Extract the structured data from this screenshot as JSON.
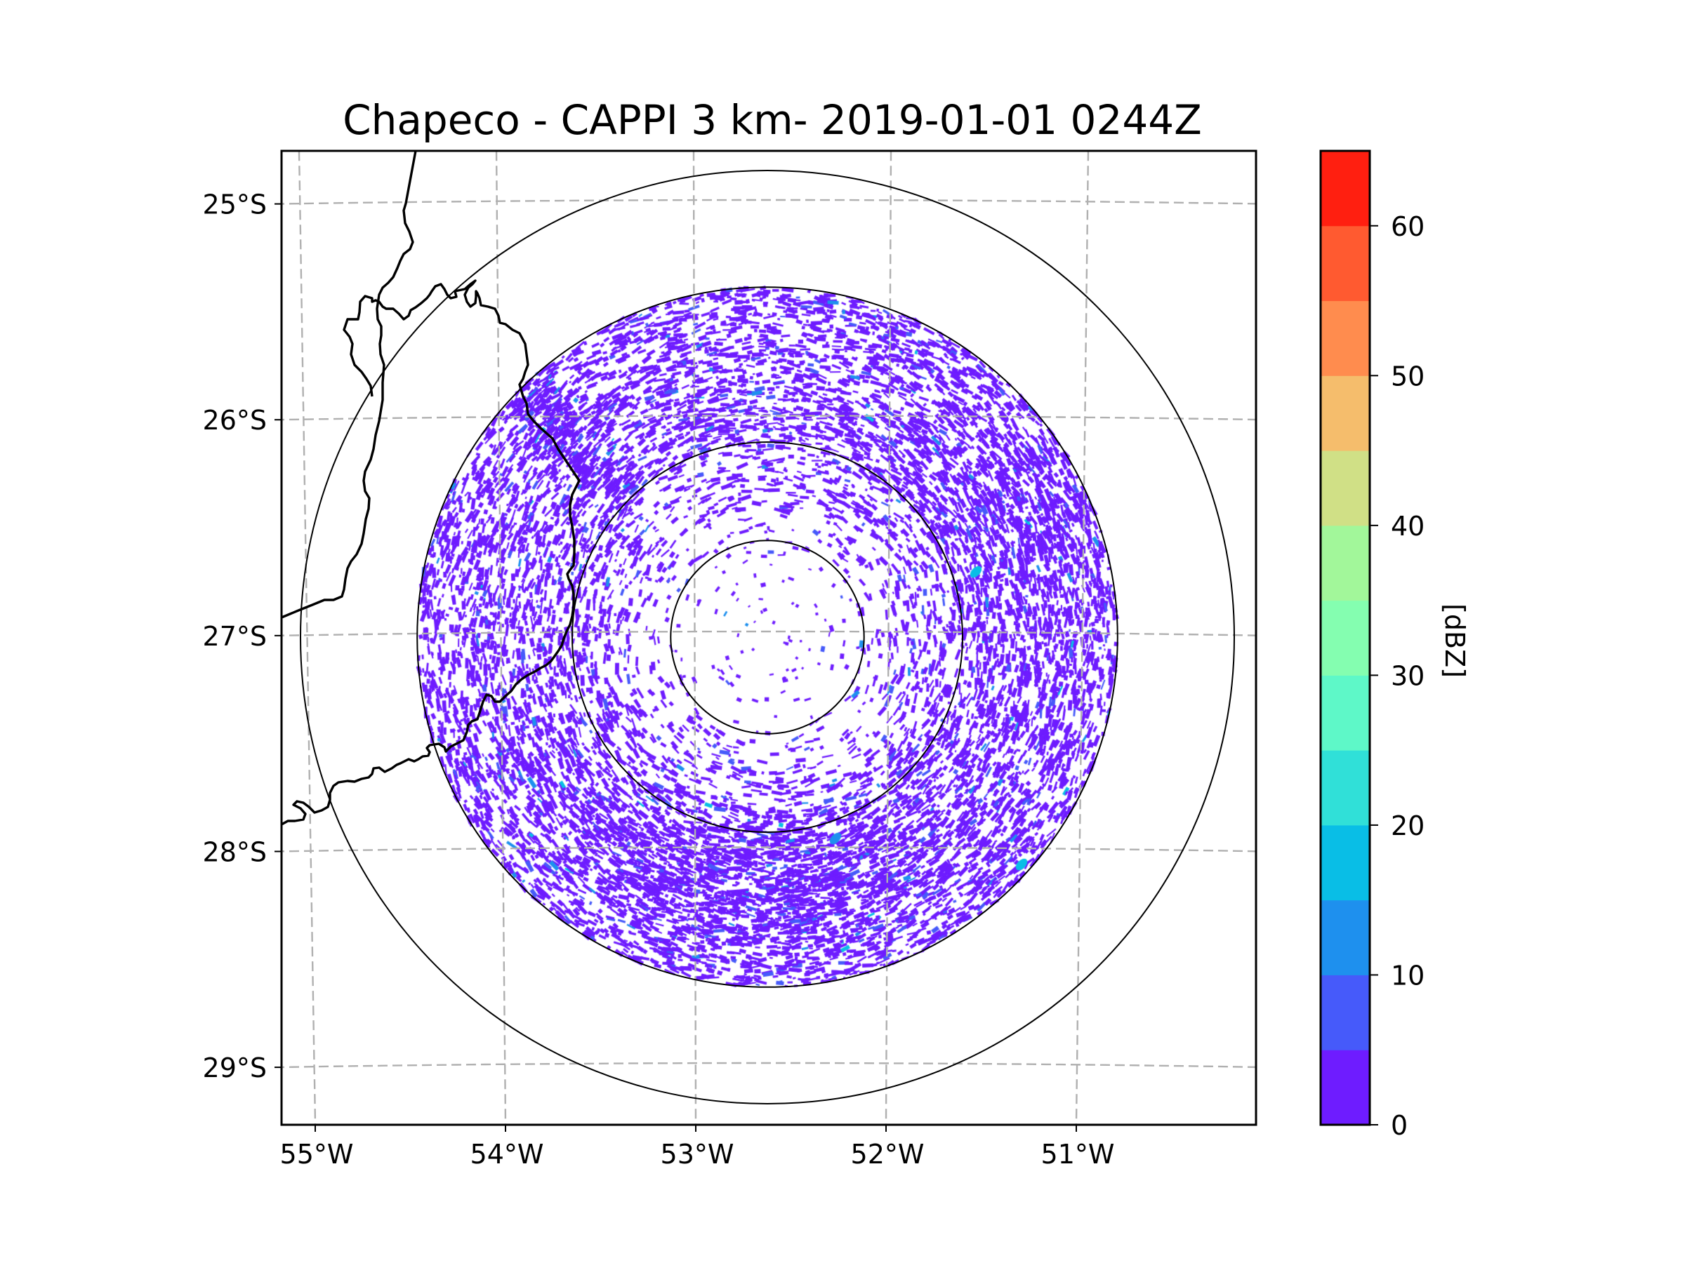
{
  "figure": {
    "title": "Chapeco - CAPPI 3 km- 2019-01-01 0244Z"
  },
  "chart_data": {
    "type": "heatmap",
    "subtype": "radar reflectivity CAPPI map",
    "title": "Chapeco - CAPPI 3 km- 2019-01-01 0244Z",
    "radar_site": "Chapeco",
    "product": "CAPPI 3 km",
    "datetime": "2019-01-01 0244Z",
    "radar_center": {
      "lon": -52.6,
      "lat": -27.03
    },
    "x_axis": {
      "label": "",
      "range_deg": [
        -55.18,
        -50.1
      ],
      "ticks": [
        {
          "value": -55,
          "label": "55°W"
        },
        {
          "value": -54,
          "label": "54°W"
        },
        {
          "value": -53,
          "label": "53°W"
        },
        {
          "value": -52,
          "label": "52°W"
        },
        {
          "value": -51,
          "label": "51°W"
        }
      ]
    },
    "y_axis": {
      "label": "",
      "range_deg": [
        -29.26,
        -24.76
      ],
      "ticks": [
        {
          "value": -25,
          "label": "25°S"
        },
        {
          "value": -26,
          "label": "26°S"
        },
        {
          "value": -27,
          "label": "27°S"
        },
        {
          "value": -28,
          "label": "28°S"
        },
        {
          "value": -29,
          "label": "29°S"
        }
      ]
    },
    "grid": true,
    "grid_style": "dashed",
    "grid_color": "#b0b0b0",
    "range_rings_relative": [
      0.207,
      0.418,
      0.75,
      1.0
    ],
    "colorbar": {
      "label": "[dBZ]",
      "placement": "right",
      "range": [
        0,
        65
      ],
      "step": 5,
      "ticks": [
        0,
        10,
        20,
        30,
        40,
        50,
        60
      ],
      "levels": [
        {
          "from": 0,
          "to": 5,
          "color": "#6e1cff"
        },
        {
          "from": 5,
          "to": 10,
          "color": "#465afa"
        },
        {
          "from": 10,
          "to": 15,
          "color": "#1e90ee"
        },
        {
          "from": 15,
          "to": 20,
          "color": "#09bee6"
        },
        {
          "from": 20,
          "to": 25,
          "color": "#30e0d8"
        },
        {
          "from": 25,
          "to": 30,
          "color": "#5ef8c8"
        },
        {
          "from": 30,
          "to": 35,
          "color": "#84feb0"
        },
        {
          "from": 35,
          "to": 40,
          "color": "#a2f79a"
        },
        {
          "from": 40,
          "to": 45,
          "color": "#d0e086"
        },
        {
          "from": 45,
          "to": 50,
          "color": "#f5bd6c"
        },
        {
          "from": 50,
          "to": 55,
          "color": "#ff8c4e"
        },
        {
          "from": 55,
          "to": 60,
          "color": "#ff5a30"
        },
        {
          "from": 60,
          "to": 65,
          "color": "#ff1f10"
        }
      ]
    },
    "echo_summary": {
      "dominant_range_dbz": [
        0,
        10
      ],
      "max_observed_dbz_approx": 20,
      "notes": "Widespread weak echoes (0-5 dBZ, violet) in an annulus around the radar, densest to the south near 28°S and along the outer ring; sparse echoes inside inner ring; isolated 10-20 dBZ cells east near 51.5°W 26.7°S and 51.3°W 28°S; radial streak toward northwest near 54°W 26°S."
    },
    "features": [
      "coastline/state border lines in black on west side",
      "four concentric range rings"
    ]
  }
}
